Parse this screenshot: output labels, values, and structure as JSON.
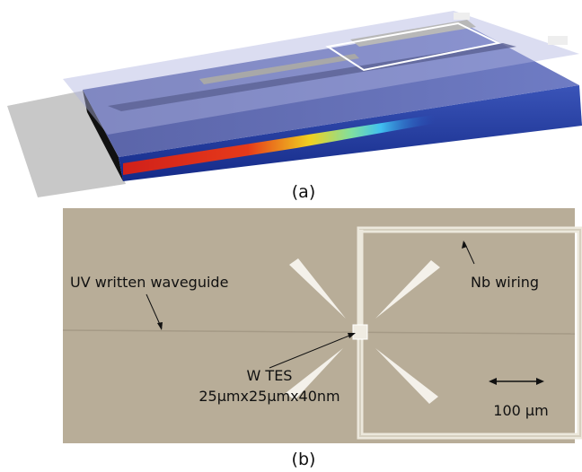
{
  "panel_a": {
    "label": "(a)"
  },
  "panel_b": {
    "label": "(b)",
    "annotations": [
      "UV written waveguide",
      "Nb wiring",
      "W TES",
      "25µmx25µmx40nm"
    ],
    "scale_bar": "100 µm"
  }
}
